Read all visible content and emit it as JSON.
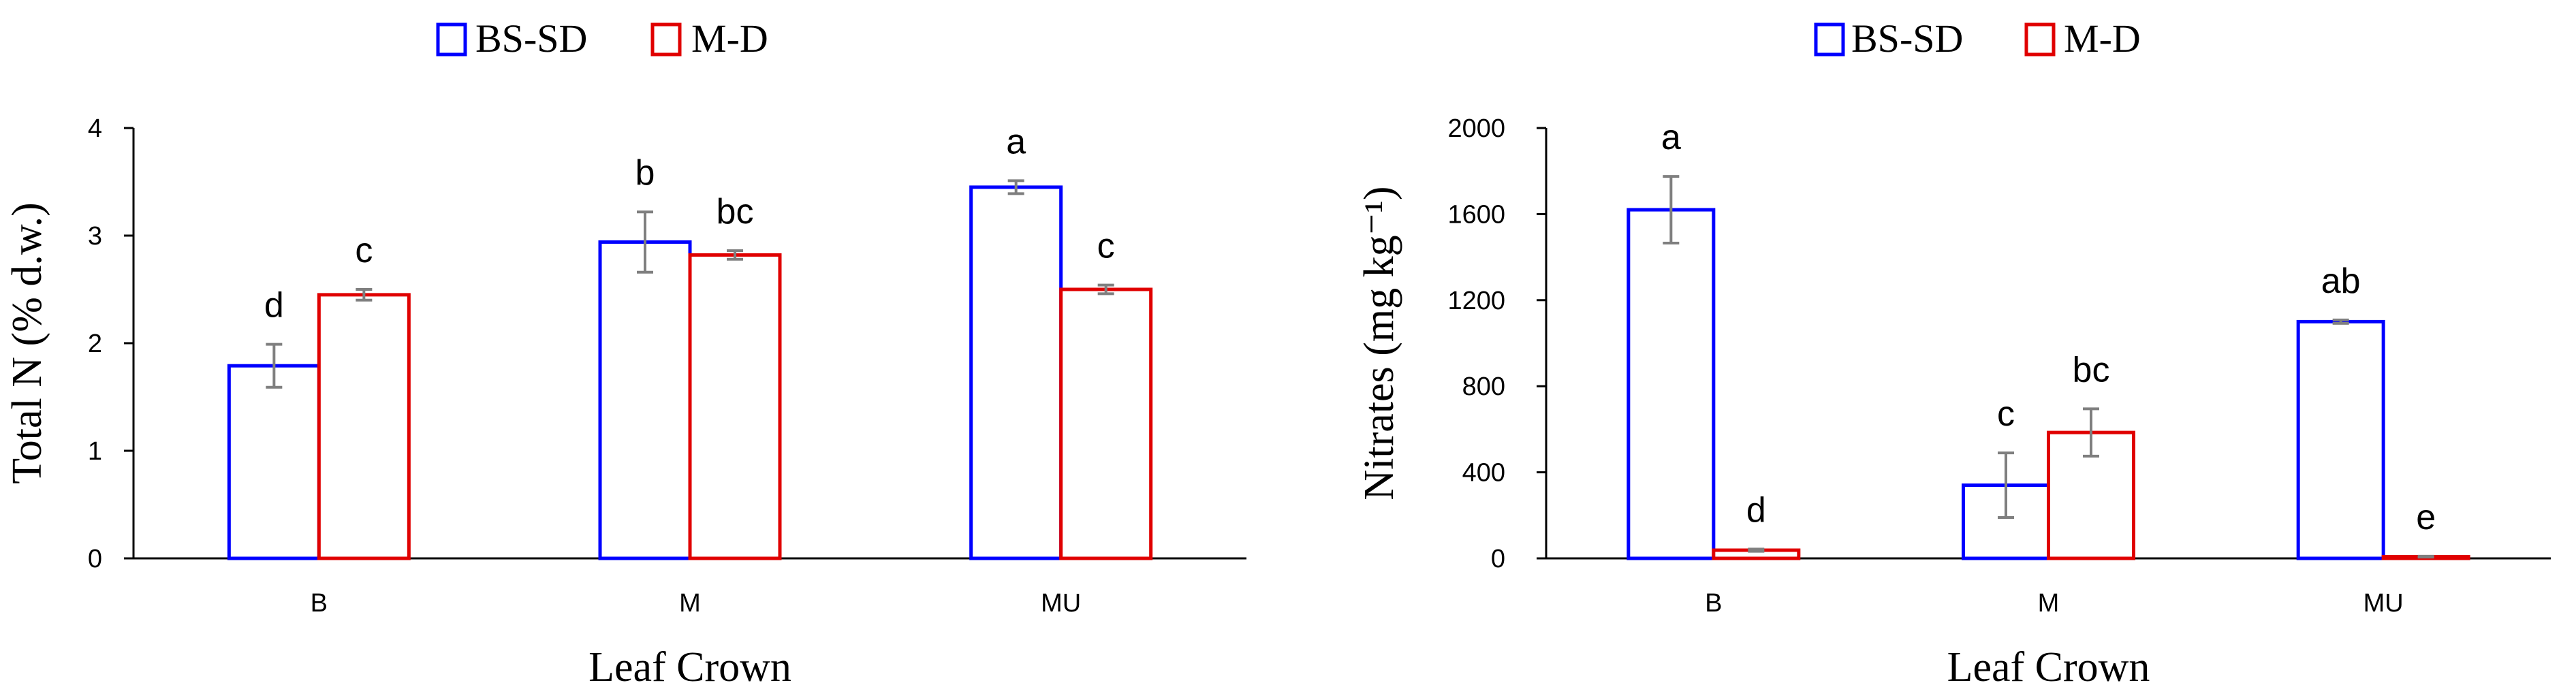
{
  "chart_data": [
    {
      "type": "bar",
      "title": "",
      "categories": [
        "B",
        "M",
        "MU"
      ],
      "series": [
        {
          "name": "BS-SD",
          "color": "#0000ff",
          "values": [
            1.79,
            2.94,
            3.45
          ],
          "errors": [
            0.2,
            0.28,
            0.06
          ],
          "labels": [
            "d",
            "b",
            "a"
          ]
        },
        {
          "name": "M-D",
          "color": "#e00000",
          "values": [
            2.45,
            2.82,
            2.5
          ],
          "errors": [
            0.05,
            0.04,
            0.04
          ],
          "labels": [
            "c",
            "bc",
            "c"
          ]
        }
      ],
      "xlabel": "Leaf Crown",
      "ylabel": "Total N (% d.w.)",
      "ylim": [
        0,
        4
      ],
      "yticks": [
        "0",
        "1",
        "2",
        "3",
        "4"
      ],
      "legend": "top-center",
      "grid": false
    },
    {
      "type": "bar",
      "title": "",
      "categories": [
        "B",
        "M",
        "MU"
      ],
      "series": [
        {
          "name": "BS-SD",
          "color": "#0000ff",
          "values": [
            1620,
            340,
            1100
          ],
          "errors": [
            155,
            150,
            8
          ],
          "labels": [
            "a",
            "c",
            "ab"
          ]
        },
        {
          "name": "M-D",
          "color": "#e00000",
          "values": [
            38,
            585,
            8
          ],
          "errors": [
            5,
            110,
            2
          ],
          "labels": [
            "d",
            "bc",
            "e"
          ]
        }
      ],
      "xlabel": "Leaf Crown",
      "ylabel": "Nitrates (mg kg⁻¹)",
      "ylim": [
        0,
        2000
      ],
      "yticks": [
        "0",
        "400",
        "800",
        "1200",
        "1600",
        "2000"
      ],
      "legend": "top-center",
      "grid": false
    }
  ]
}
